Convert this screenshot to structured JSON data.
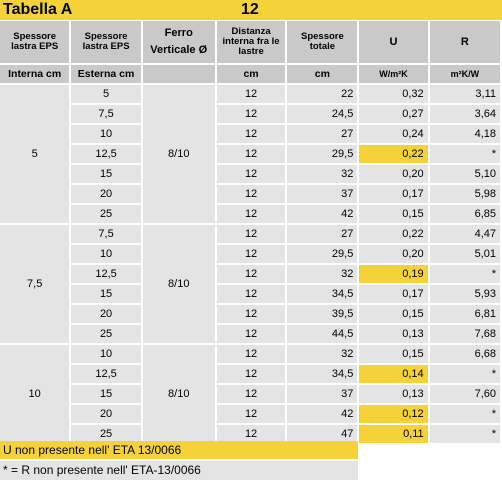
{
  "title": "Tabella A",
  "title_value": "12",
  "headers": {
    "eps_int": "Spessore lastra EPS",
    "eps_ext": "Spessore lastra EPS",
    "ferro": "Ferro Verticale Ø",
    "distanza": "Distanza interna fra le lastre",
    "spessore_totale": "Spessore totale",
    "u": "U",
    "r": "R"
  },
  "units": {
    "eps_int": "Interna cm",
    "eps_ext": "Esterna cm",
    "distanza": "cm",
    "spessore_totale": "cm",
    "u": "W/m²K",
    "r": "m²K/W"
  },
  "groups": [
    {
      "interna": "5",
      "ferro": "8/10",
      "rows": [
        {
          "esterna": "5",
          "distanza": "12",
          "totale": "22",
          "u": "0,32",
          "r": "3,11",
          "hl": false
        },
        {
          "esterna": "7,5",
          "distanza": "12",
          "totale": "24,5",
          "u": "0,27",
          "r": "3,64",
          "hl": false
        },
        {
          "esterna": "10",
          "distanza": "12",
          "totale": "27",
          "u": "0,24",
          "r": "4,18",
          "hl": false
        },
        {
          "esterna": "12,5",
          "distanza": "12",
          "totale": "29,5",
          "u": "0,22",
          "r": "*",
          "hl": true
        },
        {
          "esterna": "15",
          "distanza": "12",
          "totale": "32",
          "u": "0,20",
          "r": "5,10",
          "hl": false
        },
        {
          "esterna": "20",
          "distanza": "12",
          "totale": "37",
          "u": "0,17",
          "r": "5,98",
          "hl": false
        },
        {
          "esterna": "25",
          "distanza": "12",
          "totale": "42",
          "u": "0,15",
          "r": "6,85",
          "hl": false
        }
      ]
    },
    {
      "interna": "7,5",
      "ferro": "8/10",
      "rows": [
        {
          "esterna": "7,5",
          "distanza": "12",
          "totale": "27",
          "u": "0,22",
          "r": "4,47",
          "hl": false
        },
        {
          "esterna": "10",
          "distanza": "12",
          "totale": "29,5",
          "u": "0,20",
          "r": "5,01",
          "hl": false
        },
        {
          "esterna": "12,5",
          "distanza": "12",
          "totale": "32",
          "u": "0,19",
          "r": "*",
          "hl": true
        },
        {
          "esterna": "15",
          "distanza": "12",
          "totale": "34,5",
          "u": "0,17",
          "r": "5,93",
          "hl": false
        },
        {
          "esterna": "20",
          "distanza": "12",
          "totale": "39,5",
          "u": "0,15",
          "r": "6,81",
          "hl": false
        },
        {
          "esterna": "25",
          "distanza": "12",
          "totale": "44,5",
          "u": "0,13",
          "r": "7,68",
          "hl": false
        }
      ]
    },
    {
      "interna": "10",
      "ferro": "8/10",
      "rows": [
        {
          "esterna": "10",
          "distanza": "12",
          "totale": "32",
          "u": "0,15",
          "r": "6,68",
          "hl": false
        },
        {
          "esterna": "12,5",
          "distanza": "12",
          "totale": "34,5",
          "u": "0,14",
          "r": "*",
          "hl": true
        },
        {
          "esterna": "15",
          "distanza": "12",
          "totale": "37",
          "u": "0,13",
          "r": "7,60",
          "hl": false
        },
        {
          "esterna": "20",
          "distanza": "12",
          "totale": "42",
          "u": "0,12",
          "r": "*",
          "hl": true
        },
        {
          "esterna": "25",
          "distanza": "12",
          "totale": "47",
          "u": "0,11",
          "r": "*",
          "hl": true
        }
      ]
    }
  ],
  "footnotes": {
    "u_note": "U  non presente nell' ETA 13/0066",
    "r_note": "* = R non presente nell' ETA-13/0066"
  },
  "colors": {
    "highlight": "#f6d23a",
    "header_bg": "#c9c9c9",
    "cell_bg": "#e4e4e4"
  }
}
